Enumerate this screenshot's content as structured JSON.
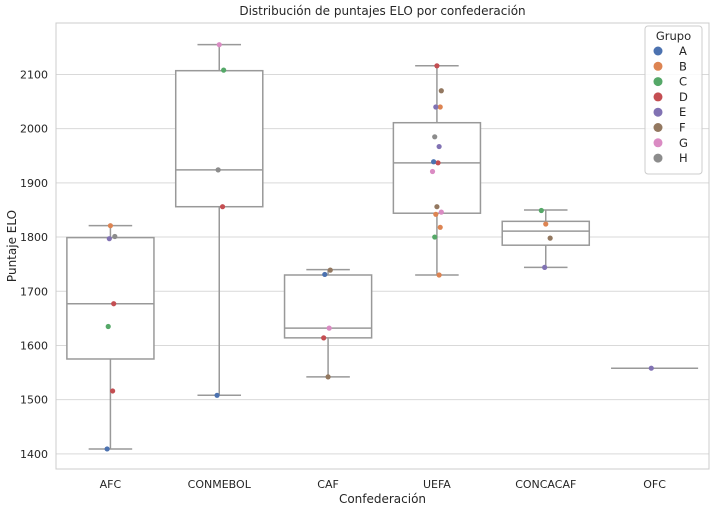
{
  "chart_data": {
    "type": "box",
    "title": "Distribución de puntajes ELO por confederación",
    "xlabel": "Confederación",
    "ylabel": "Puntaje ELO",
    "ylim": [
      1372,
      2195
    ],
    "yticks": [
      1400,
      1500,
      1600,
      1700,
      1800,
      1900,
      2000,
      2100
    ],
    "grid": "horizontal",
    "legend": {
      "title": "Grupo",
      "position": "top-right"
    },
    "groups": [
      {
        "name": "A",
        "color": "#4c72b0"
      },
      {
        "name": "B",
        "color": "#dd8452"
      },
      {
        "name": "C",
        "color": "#55a868"
      },
      {
        "name": "D",
        "color": "#c44e52"
      },
      {
        "name": "E",
        "color": "#8172b3"
      },
      {
        "name": "F",
        "color": "#937860"
      },
      {
        "name": "G",
        "color": "#da8bc3"
      },
      {
        "name": "H",
        "color": "#8c8c8c"
      }
    ],
    "categories": [
      "AFC",
      "CONMEBOL",
      "CAF",
      "UEFA",
      "CONCACAF",
      "OFC"
    ],
    "boxes": [
      {
        "category": "AFC",
        "whislo": 1409,
        "q1": 1575,
        "med": 1677,
        "q3": 1799,
        "whishi": 1821
      },
      {
        "category": "CONMEBOL",
        "whislo": 1508,
        "q1": 1856,
        "med": 1924,
        "q3": 2107,
        "whishi": 2155
      },
      {
        "category": "CAF",
        "whislo": 1542,
        "q1": 1614,
        "med": 1632,
        "q3": 1730,
        "whishi": 1740
      },
      {
        "category": "UEFA",
        "whislo": 1730,
        "q1": 1844,
        "med": 1937,
        "q3": 2011,
        "whishi": 2116
      },
      {
        "category": "CONCACAF",
        "whislo": 1744,
        "q1": 1785,
        "med": 1811,
        "q3": 1829,
        "whishi": 1850
      },
      {
        "category": "OFC",
        "whislo": 1558,
        "q1": 1558,
        "med": 1558,
        "q3": 1558,
        "whishi": 1558
      }
    ],
    "points": [
      {
        "category": "AFC",
        "group": "A",
        "value": 1409
      },
      {
        "category": "AFC",
        "group": "D",
        "value": 1516
      },
      {
        "category": "AFC",
        "group": "C",
        "value": 1635
      },
      {
        "category": "AFC",
        "group": "D",
        "value": 1677
      },
      {
        "category": "AFC",
        "group": "E",
        "value": 1797
      },
      {
        "category": "AFC",
        "group": "H",
        "value": 1801
      },
      {
        "category": "AFC",
        "group": "B",
        "value": 1821
      },
      {
        "category": "CONMEBOL",
        "group": "A",
        "value": 1508
      },
      {
        "category": "CONMEBOL",
        "group": "D",
        "value": 1856
      },
      {
        "category": "CONMEBOL",
        "group": "H",
        "value": 1924
      },
      {
        "category": "CONMEBOL",
        "group": "C",
        "value": 2108
      },
      {
        "category": "CONMEBOL",
        "group": "G",
        "value": 2155
      },
      {
        "category": "CAF",
        "group": "F",
        "value": 1542
      },
      {
        "category": "CAF",
        "group": "D",
        "value": 1614
      },
      {
        "category": "CAF",
        "group": "G",
        "value": 1632
      },
      {
        "category": "CAF",
        "group": "A",
        "value": 1731
      },
      {
        "category": "CAF",
        "group": "F",
        "value": 1739
      },
      {
        "category": "UEFA",
        "group": "B",
        "value": 1730
      },
      {
        "category": "UEFA",
        "group": "C",
        "value": 1800
      },
      {
        "category": "UEFA",
        "group": "B",
        "value": 1818
      },
      {
        "category": "UEFA",
        "group": "B",
        "value": 1842
      },
      {
        "category": "UEFA",
        "group": "G",
        "value": 1846
      },
      {
        "category": "UEFA",
        "group": "F",
        "value": 1856
      },
      {
        "category": "UEFA",
        "group": "G",
        "value": 1921
      },
      {
        "category": "UEFA",
        "group": "D",
        "value": 1937
      },
      {
        "category": "UEFA",
        "group": "A",
        "value": 1939
      },
      {
        "category": "UEFA",
        "group": "E",
        "value": 1967
      },
      {
        "category": "UEFA",
        "group": "H",
        "value": 1985
      },
      {
        "category": "UEFA",
        "group": "B",
        "value": 2040
      },
      {
        "category": "UEFA",
        "group": "E",
        "value": 2040
      },
      {
        "category": "UEFA",
        "group": "F",
        "value": 2070
      },
      {
        "category": "UEFA",
        "group": "D",
        "value": 2116
      },
      {
        "category": "CONCACAF",
        "group": "E",
        "value": 1744
      },
      {
        "category": "CONCACAF",
        "group": "F",
        "value": 1798
      },
      {
        "category": "CONCACAF",
        "group": "B",
        "value": 1824
      },
      {
        "category": "CONCACAF",
        "group": "C",
        "value": 1849
      },
      {
        "category": "OFC",
        "group": "E",
        "value": 1558
      }
    ]
  }
}
